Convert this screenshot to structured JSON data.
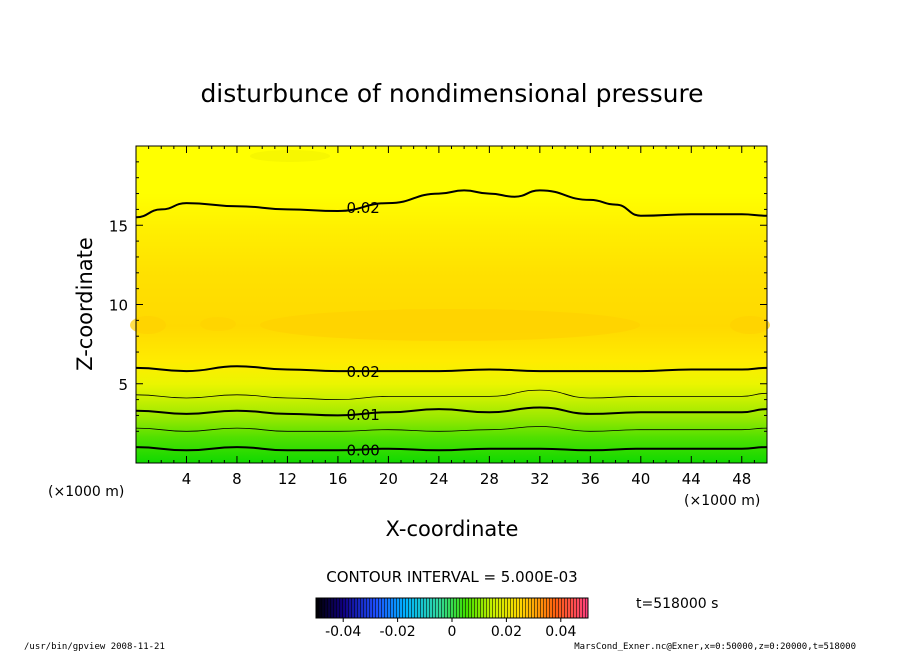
{
  "chart_data": {
    "type": "contour",
    "title": "disturbunce of nondimensional pressure",
    "xlabel": "X-coordinate",
    "ylabel": "Z-coordinate",
    "x_unit_left": "(×1000 m)",
    "x_unit_right": "(×1000 m)",
    "xlim": [
      0,
      50
    ],
    "ylim": [
      0,
      20
    ],
    "x_ticks": [
      4,
      8,
      12,
      16,
      20,
      24,
      28,
      32,
      36,
      40,
      44,
      48
    ],
    "y_ticks": [
      5,
      10,
      15
    ],
    "contour_interval_label": "CONTOUR INTERVAL = 5.000E-03",
    "time_label": "t=518000 s",
    "colorbar": {
      "range": [
        -0.05,
        0.05
      ],
      "ticks": [
        "-0.04",
        "-0.02",
        "0",
        "0.02",
        "0.04"
      ]
    },
    "contours": [
      {
        "level": 0.0,
        "label": "0.00",
        "bold": true,
        "x": [
          0,
          4,
          8,
          12,
          16,
          20,
          24,
          28,
          32,
          36,
          40,
          44,
          48,
          50
        ],
        "z": [
          1.0,
          0.8,
          1.0,
          0.8,
          0.8,
          0.9,
          0.8,
          0.9,
          0.9,
          0.8,
          0.9,
          0.9,
          0.9,
          1.0
        ]
      },
      {
        "level": 0.005,
        "label": "",
        "bold": false,
        "x": [
          0,
          4,
          8,
          12,
          16,
          20,
          24,
          28,
          32,
          36,
          40,
          44,
          48,
          50
        ],
        "z": [
          2.2,
          2.0,
          2.2,
          2.0,
          2.0,
          2.1,
          2.0,
          2.1,
          2.3,
          2.0,
          2.1,
          2.1,
          2.1,
          2.2
        ]
      },
      {
        "level": 0.01,
        "label": "0.01",
        "bold": true,
        "x": [
          0,
          4,
          8,
          12,
          16,
          20,
          24,
          28,
          32,
          36,
          40,
          44,
          48,
          50
        ],
        "z": [
          3.3,
          3.1,
          3.3,
          3.1,
          3.0,
          3.2,
          3.4,
          3.2,
          3.5,
          3.1,
          3.2,
          3.2,
          3.2,
          3.4
        ]
      },
      {
        "level": 0.015,
        "label": "",
        "bold": false,
        "x": [
          0,
          4,
          8,
          12,
          16,
          20,
          24,
          28,
          32,
          36,
          40,
          44,
          48,
          50
        ],
        "z": [
          4.3,
          4.1,
          4.3,
          4.1,
          4.0,
          4.2,
          4.2,
          4.2,
          4.6,
          4.1,
          4.2,
          4.2,
          4.2,
          4.4
        ]
      },
      {
        "level": 0.02,
        "label": "0.02",
        "bold": true,
        "x": [
          0,
          4,
          8,
          12,
          16,
          20,
          24,
          28,
          32,
          36,
          40,
          44,
          48,
          50
        ],
        "z": [
          6.0,
          5.8,
          6.1,
          5.9,
          5.8,
          5.8,
          5.8,
          5.9,
          5.8,
          5.8,
          5.8,
          5.9,
          5.9,
          6.0
        ]
      },
      {
        "level": 0.02,
        "label": "0.02",
        "bold": true,
        "x": [
          0,
          2,
          4,
          8,
          12,
          16,
          20,
          24,
          26,
          28,
          30,
          32,
          36,
          38,
          40,
          44,
          48,
          50
        ],
        "z": [
          15.5,
          16.0,
          16.4,
          16.2,
          16.0,
          15.9,
          16.4,
          17.0,
          17.2,
          17.0,
          16.8,
          17.2,
          16.6,
          16.3,
          15.6,
          15.7,
          15.7,
          15.6
        ]
      }
    ]
  },
  "footer": {
    "left": "/usr/bin/gpview  2008-11-21",
    "right": "MarsCond_Exner.nc@Exner,x=0:50000,z=0:20000,t=518000"
  }
}
